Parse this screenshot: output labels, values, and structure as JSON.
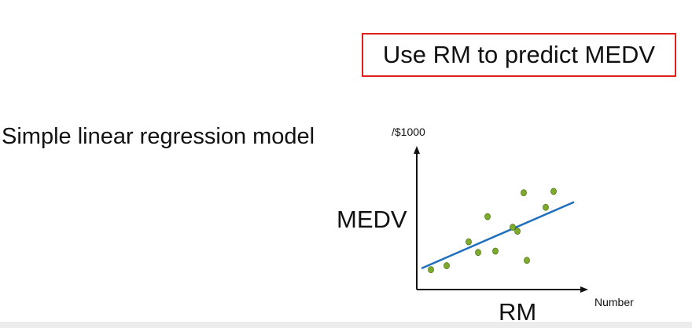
{
  "title": "Use RM to predict MEDV",
  "subtitle": "Simple linear regression model",
  "colors": {
    "title_border": "#e0201a",
    "points": "#7faa2e",
    "points_stroke": "#4f7a14",
    "regression_line": "#1f6fbd",
    "axis": "#111111"
  },
  "chart_data": {
    "type": "scatter",
    "ylabel": "MEDV",
    "y_unit": "/$1000",
    "xlabel": "RM",
    "x_unit": "Number",
    "xlim": [
      0,
      10
    ],
    "ylim": [
      0,
      10
    ],
    "grid": false,
    "points": [
      {
        "x": 0.9,
        "y": 1.5
      },
      {
        "x": 1.9,
        "y": 1.8
      },
      {
        "x": 3.3,
        "y": 3.6
      },
      {
        "x": 3.9,
        "y": 2.8
      },
      {
        "x": 4.5,
        "y": 5.5
      },
      {
        "x": 5.0,
        "y": 2.9
      },
      {
        "x": 6.1,
        "y": 4.7
      },
      {
        "x": 6.4,
        "y": 4.4
      },
      {
        "x": 6.8,
        "y": 7.3
      },
      {
        "x": 7.0,
        "y": 2.2
      },
      {
        "x": 8.2,
        "y": 6.2
      },
      {
        "x": 8.7,
        "y": 7.4
      }
    ],
    "fit_line": {
      "x": [
        0.3,
        10.0
      ],
      "y": [
        1.6,
        6.6
      ]
    }
  }
}
